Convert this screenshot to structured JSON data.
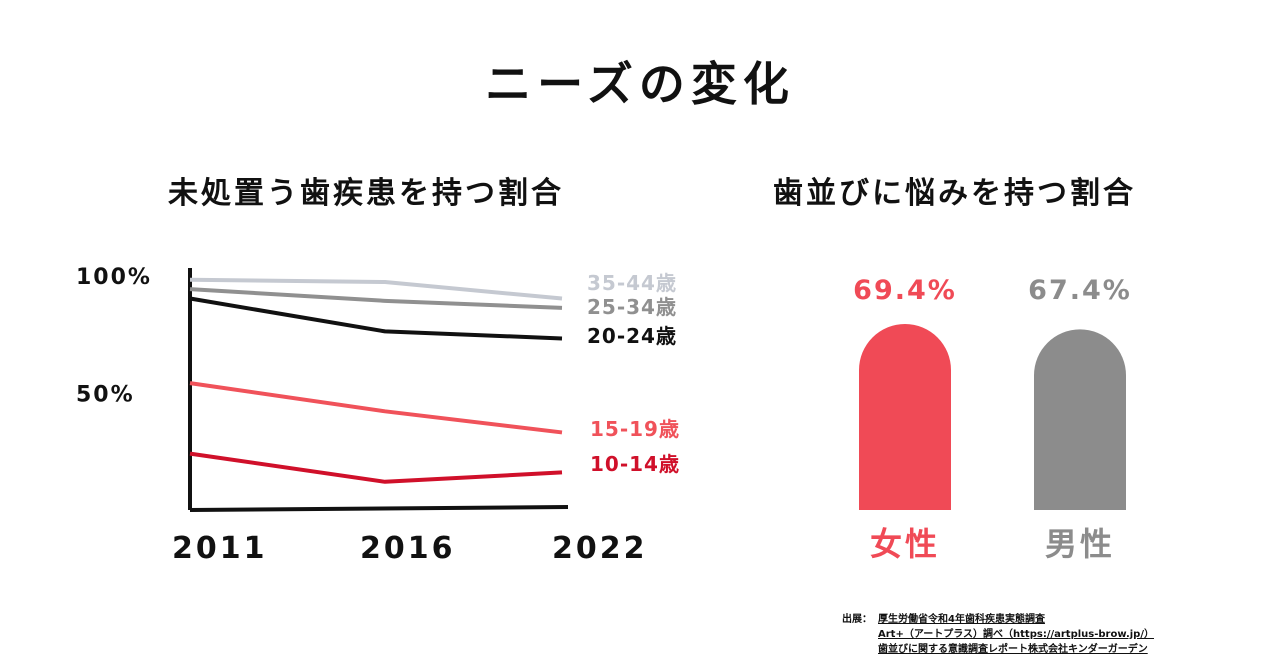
{
  "title": "ニーズの変化",
  "source": {
    "prefix": "出展：",
    "lines": [
      "厚生労働省令和4年歯科疾患実態調査",
      "Art+（アートプラス）調べ（https://artplus-brow.jp/）",
      "歯並びに関する意識調査レポート株式会社キンダーガーデン"
    ]
  },
  "chart_data": [
    {
      "type": "line",
      "title": "未処置う歯疾患を持つ割合",
      "x": [
        "2011",
        "2016",
        "2022"
      ],
      "yticks": [
        "100%",
        "50%"
      ],
      "ylim": [
        0,
        100
      ],
      "grid": false,
      "series": [
        {
          "name": "35-44歳",
          "values": [
            98,
            97,
            90
          ],
          "color": "#c5c9d1"
        },
        {
          "name": "25-34歳",
          "values": [
            94,
            89,
            86
          ],
          "color": "#909090"
        },
        {
          "name": "20-24歳",
          "values": [
            90,
            76,
            73
          ],
          "color": "#111111"
        },
        {
          "name": "15-19歳",
          "values": [
            54,
            42,
            33
          ],
          "color": "#f0525a"
        },
        {
          "name": "10-14歳",
          "values": [
            24,
            12,
            16
          ],
          "color": "#d0102a"
        }
      ]
    },
    {
      "type": "bar",
      "title": "歯並びに悩みを持つ割合",
      "categories": [
        "女性",
        "男性"
      ],
      "values": [
        69.4,
        67.4
      ],
      "value_labels": [
        "69.4%",
        "67.4%"
      ],
      "colors": [
        "#f04a56",
        "#8c8c8c"
      ]
    }
  ]
}
